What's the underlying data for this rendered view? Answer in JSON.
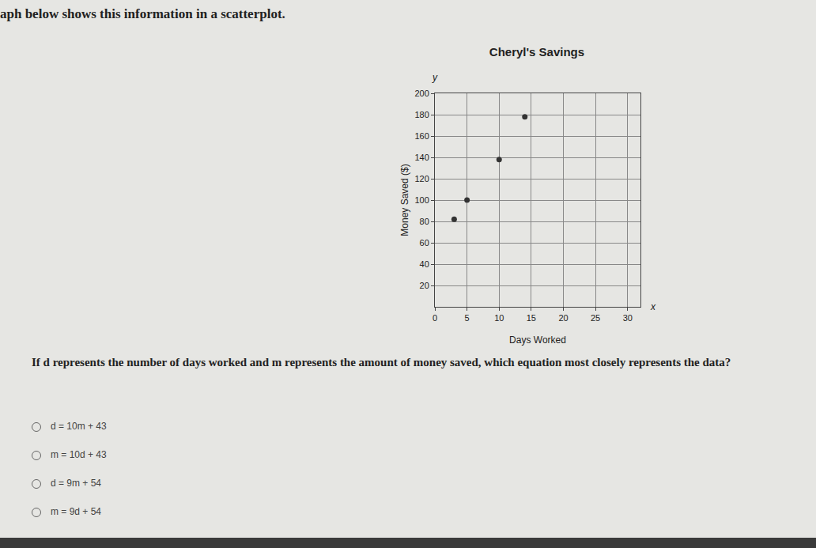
{
  "page": {
    "header": "aph below shows this information in a scatterplot.",
    "question": "If d represents the number of days worked and m represents the amount of money saved, which equation most closely represents the data?",
    "options": [
      "d = 10m + 43",
      "m = 10d + 43",
      "d = 9m + 54",
      "m = 9d + 54"
    ]
  },
  "chart_data": {
    "type": "scatter",
    "title": "Cheryl's Savings",
    "x_label": "Days Worked",
    "y_label": "Money Saved ($)",
    "axis_names": {
      "x": "x",
      "y": "y"
    },
    "x": [
      3,
      5,
      10,
      14
    ],
    "values": [
      82,
      100,
      138,
      178
    ],
    "color": "#333333",
    "marker": "circle",
    "xlim": [
      0,
      32
    ],
    "xticks": [
      0,
      5,
      10,
      15,
      20,
      25,
      30
    ],
    "ylim": [
      0,
      200
    ],
    "yticks": [
      20,
      40,
      60,
      80,
      100,
      120,
      140,
      160,
      180,
      200
    ],
    "grid": true
  }
}
